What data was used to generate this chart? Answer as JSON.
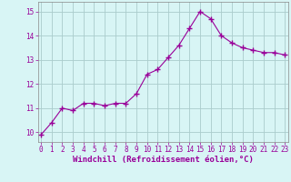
{
  "x": [
    0,
    1,
    2,
    3,
    4,
    5,
    6,
    7,
    8,
    9,
    10,
    11,
    12,
    13,
    14,
    15,
    16,
    17,
    18,
    19,
    20,
    21,
    22,
    23
  ],
  "y": [
    9.9,
    10.4,
    11.0,
    10.9,
    11.2,
    11.2,
    11.1,
    11.2,
    11.2,
    11.6,
    12.4,
    12.6,
    13.1,
    13.6,
    14.3,
    15.0,
    14.7,
    14.0,
    13.7,
    13.5,
    13.4,
    13.3,
    13.3,
    13.2
  ],
  "line_color": "#990099",
  "marker": "+",
  "marker_size": 4,
  "marker_linewidth": 1.0,
  "bg_color": "#d8f5f5",
  "grid_color": "#aacccc",
  "xlabel": "Windchill (Refroidissement éolien,°C)",
  "xlabel_color": "#990099",
  "xlabel_fontsize": 6.5,
  "tick_color": "#990099",
  "tick_fontsize": 5.5,
  "ytick_values": [
    10,
    11,
    12,
    13,
    14,
    15
  ],
  "xtick_values": [
    0,
    1,
    2,
    3,
    4,
    5,
    6,
    7,
    8,
    9,
    10,
    11,
    12,
    13,
    14,
    15,
    16,
    17,
    18,
    19,
    20,
    21,
    22,
    23
  ],
  "ylim": [
    9.6,
    15.4
  ],
  "xlim": [
    -0.3,
    23.3
  ],
  "line_width": 0.8
}
